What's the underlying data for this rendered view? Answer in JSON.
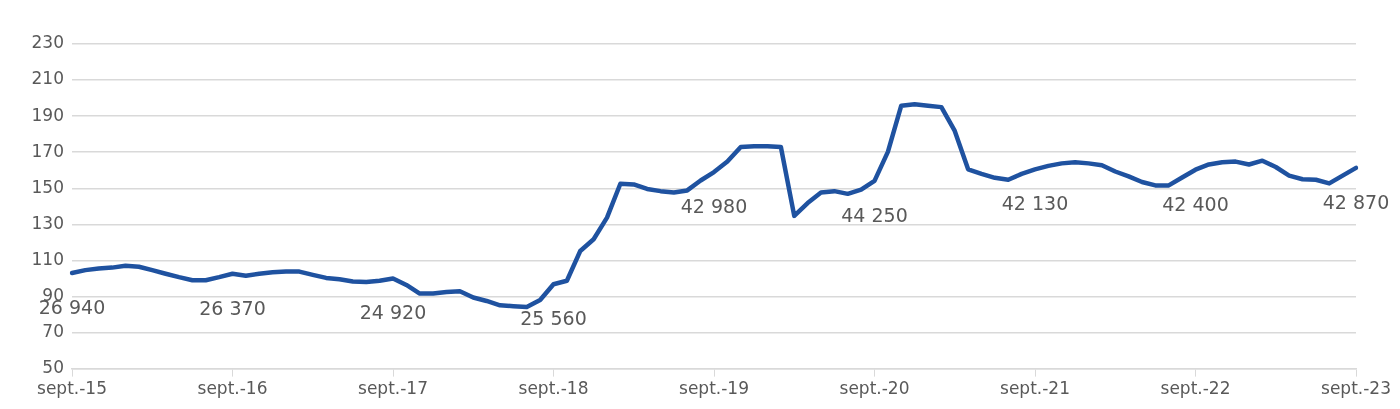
{
  "chart_data": {
    "type": "line",
    "categories": [
      "sept.-15",
      null,
      null,
      null,
      null,
      null,
      null,
      null,
      null,
      null,
      null,
      null,
      "sept.-16",
      null,
      null,
      null,
      null,
      null,
      null,
      null,
      null,
      null,
      null,
      null,
      "sept.-17",
      null,
      null,
      null,
      null,
      null,
      null,
      null,
      null,
      null,
      null,
      null,
      "sept.-18",
      null,
      null,
      null,
      null,
      null,
      null,
      null,
      null,
      null,
      null,
      null,
      "sept.-19",
      null,
      null,
      null,
      null,
      null,
      null,
      null,
      null,
      null,
      null,
      null,
      "sept.-20",
      null,
      null,
      null,
      null,
      null,
      null,
      null,
      null,
      null,
      null,
      null,
      "sept.-21",
      null,
      null,
      null,
      null,
      null,
      null,
      null,
      null,
      null,
      null,
      null,
      "sept.-22",
      null,
      null,
      null,
      null,
      null,
      null,
      null,
      null,
      null,
      null,
      null,
      "sept.-23"
    ],
    "series": [
      {
        "color": "#1f52a0",
        "values": [
          103,
          104.6,
          105.5,
          106,
          107,
          106.5,
          104.6,
          102.6,
          100.7,
          99,
          99,
          100.7,
          102.6,
          101.5,
          102.6,
          103.4,
          103.8,
          103.8,
          102,
          100.3,
          99.5,
          98.3,
          98,
          98.7,
          100,
          96.4,
          91.6,
          91.7,
          92.5,
          92.9,
          89.4,
          87.5,
          85.1,
          84.6,
          84.2,
          88,
          96.8,
          98.7,
          115.2,
          121.7,
          133.7,
          152.5,
          152.1,
          149.6,
          148.4,
          147.7,
          148.8,
          154.3,
          159,
          164.8,
          172.9,
          173.3,
          173.3,
          172.9,
          134.7,
          141.8,
          147.7,
          148.4,
          146.9,
          149.2,
          154.1,
          170.2,
          195.8,
          196.6,
          195.8,
          195,
          181.8,
          160.5,
          158,
          155.8,
          154.7,
          158,
          160.5,
          162.4,
          163.8,
          164.4,
          163.8,
          162.8,
          159.3,
          156.6,
          153.5,
          151.6,
          151.6,
          156,
          160.3,
          163.2,
          164.4,
          164.8,
          163.2,
          165.3,
          161.8,
          157,
          155,
          154.7,
          152.7,
          157,
          161.3
        ]
      }
    ],
    "ylim": [
      50,
      230
    ],
    "yticks": [
      50,
      70,
      90,
      110,
      130,
      150,
      170,
      190,
      210,
      230
    ],
    "grid": "y",
    "legend": false,
    "marker": "none",
    "line_style": "solid",
    "annotations": [
      "26 940",
      "26 370",
      "24 920",
      "25 560",
      "42 980",
      "44 250",
      "42 130",
      "42 400",
      "42 870"
    ]
  }
}
